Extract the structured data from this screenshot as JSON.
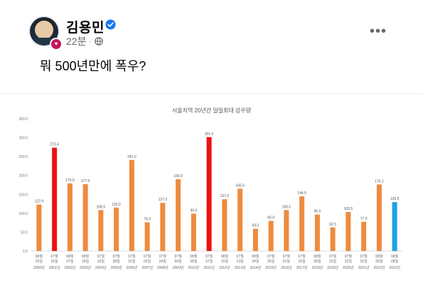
{
  "post": {
    "author": "김용민",
    "time": "22분",
    "separator": "·",
    "text": "뭐 500년만에 폭우?",
    "more_label": "•••"
  },
  "icons": {
    "avatar": "profile-photo",
    "badge": "heart-badge-icon",
    "verified": "verified-check-icon",
    "privacy": "globe-icon",
    "more": "more-options-icon"
  },
  "chart_data": {
    "type": "bar",
    "title": "서울지역 20년간 일일최대 강우량",
    "ylim": [
      0,
      350
    ],
    "yticks": [
      "0.0",
      "50.0",
      "100.0",
      "150.0",
      "200.0",
      "250.0",
      "300.0",
      "350.0"
    ],
    "grid": false,
    "categories": [
      {
        "md": [
          "08월",
          "23일"
        ],
        "year": "2000년"
      },
      {
        "md": [
          "07월",
          "15일"
        ],
        "year": "2001년"
      },
      {
        "md": [
          "08월",
          "07일"
        ],
        "year": "2002년"
      },
      {
        "md": [
          "08월",
          "24일"
        ],
        "year": "2003년"
      },
      {
        "md": [
          "07월",
          "16일"
        ],
        "year": "2004년"
      },
      {
        "md": [
          "07월",
          "28일"
        ],
        "year": "2005년"
      },
      {
        "md": [
          "07월",
          "16일"
        ],
        "year": "2006년"
      },
      {
        "md": [
          "07월",
          "02일"
        ],
        "year": "2007년"
      },
      {
        "md": [
          "07월",
          "24일"
        ],
        "year": "2008년"
      },
      {
        "md": [
          "07월",
          "09일"
        ],
        "year": "2009년"
      },
      {
        "md": [
          "08월",
          "28일"
        ],
        "year": "2010년"
      },
      {
        "md": [
          "07월",
          "27일"
        ],
        "year": "2011년"
      },
      {
        "md": [
          "08월",
          "15일"
        ],
        "year": "2012년"
      },
      {
        "md": [
          "07월",
          "13일"
        ],
        "year": "2013년"
      },
      {
        "md": [
          "08월",
          "24일"
        ],
        "year": "2014년"
      },
      {
        "md": [
          "07월",
          "25일"
        ],
        "year": "2015년"
      },
      {
        "md": [
          "07월",
          "01일"
        ],
        "year": "2016년"
      },
      {
        "md": [
          "07월",
          "10일"
        ],
        "year": "2017년"
      },
      {
        "md": [
          "08월",
          "28일"
        ],
        "year": "2018년"
      },
      {
        "md": [
          "07월",
          "31일"
        ],
        "year": "2019년"
      },
      {
        "md": [
          "07월",
          "22일"
        ],
        "year": "2020년"
      },
      {
        "md": [
          "07월",
          "31일"
        ],
        "year": "2021년"
      },
      {
        "md": [
          "08월",
          "30일"
        ],
        "year": "2022년"
      },
      {
        "md": [
          "08월",
          "08일"
        ],
        "year": "2022년"
      }
    ],
    "values": [
      122.9,
      273.4,
      179.0,
      177.0,
      108.5,
      115.0,
      241.0,
      76.0,
      127.5,
      190.0,
      99.0,
      301.5,
      137.0,
      165.0,
      59.0,
      80.0,
      108.5,
      144.5,
      96.5,
      62.5,
      103.5,
      77.5,
      176.2,
      129.5
    ],
    "value_labels": [
      "122.9",
      "273.4",
      "179.0",
      "177.0",
      "108.5",
      "115.0",
      "241.0",
      "76.0",
      "127.5",
      "190.0",
      "99.0",
      "301.5",
      "137.0",
      "165.0",
      "59.0",
      "80.0",
      "108.5",
      "144.5",
      "96.5",
      "62.5",
      "103.5",
      "77.5",
      "176.2",
      "129.5"
    ],
    "colors": [
      "#ed8b3e",
      "#ee1111",
      "#ed8b3e",
      "#ed8b3e",
      "#ed8b3e",
      "#ed8b3e",
      "#ed8b3e",
      "#ed8b3e",
      "#ed8b3e",
      "#ed8b3e",
      "#ed8b3e",
      "#ee1111",
      "#ed8b3e",
      "#ed8b3e",
      "#ed8b3e",
      "#ed8b3e",
      "#ed8b3e",
      "#ed8b3e",
      "#ed8b3e",
      "#ed8b3e",
      "#ed8b3e",
      "#ed8b3e",
      "#ed8b3e",
      "#1ea3e4"
    ]
  }
}
